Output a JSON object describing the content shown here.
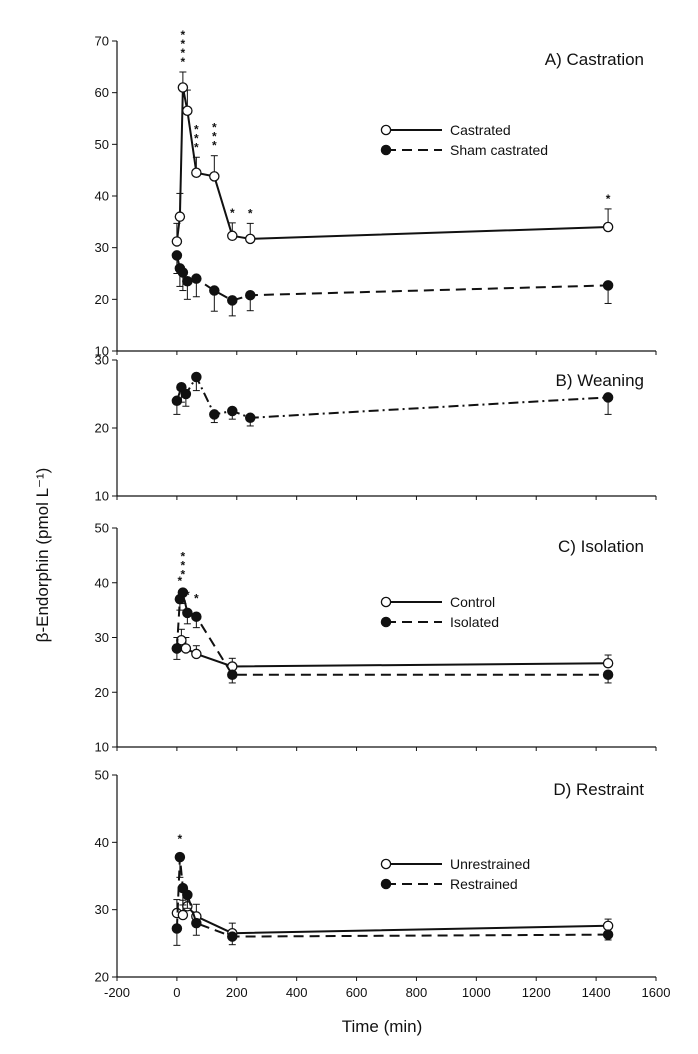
{
  "figure": {
    "ylabel": "β-Endorphin (pmol L⁻¹)",
    "xlabel": "Time (min)"
  },
  "chart_data": [
    {
      "type": "line",
      "title": "A) Castration",
      "xlim": [
        -200,
        1600
      ],
      "ylim": [
        10,
        70
      ],
      "yticks": [
        10,
        20,
        30,
        40,
        50,
        60,
        70
      ],
      "xticks": [],
      "legend": "right",
      "series": [
        {
          "name": "Castrated",
          "marker": "open",
          "dash": "solid",
          "x": [
            0,
            10,
            20,
            35,
            65,
            125,
            185,
            245,
            1440
          ],
          "y": [
            31.2,
            36,
            61,
            56.5,
            44.5,
            43.8,
            32.3,
            31.7,
            34
          ],
          "err": [
            3.5,
            4.5,
            3,
            4,
            3,
            4,
            2.5,
            3,
            3.5
          ],
          "stars": [
            0,
            0,
            4,
            0,
            3,
            3,
            1,
            1,
            1
          ]
        },
        {
          "name": "Sham castrated",
          "marker": "filled",
          "dash": "dashed",
          "x": [
            0,
            10,
            20,
            35,
            65,
            125,
            185,
            245,
            1440
          ],
          "y": [
            28.5,
            26,
            25.2,
            23.5,
            24,
            21.7,
            19.8,
            20.8,
            22.7
          ],
          "err": [
            3.5,
            3.5,
            3.5,
            3.5,
            3.5,
            4,
            3,
            3,
            3.5
          ],
          "stars": [
            0,
            0,
            0,
            0,
            0,
            0,
            0,
            0,
            0
          ]
        }
      ]
    },
    {
      "type": "line",
      "title": "B) Weaning",
      "xlim": [
        -200,
        1600
      ],
      "ylim": [
        10,
        30
      ],
      "yticks": [
        10,
        20,
        30
      ],
      "xticks": [],
      "legend": "none",
      "series": [
        {
          "name": "",
          "marker": "filled",
          "dash": "dashdot",
          "x": [
            0,
            15,
            30,
            65,
            125,
            185,
            245,
            1440
          ],
          "y": [
            24,
            26,
            25,
            27.5,
            22,
            22.5,
            21.5,
            24.5
          ],
          "err": [
            2,
            2.2,
            1.8,
            2,
            1.2,
            1.2,
            1.2,
            2.5
          ],
          "stars": [
            0,
            0,
            0,
            0,
            0,
            0,
            0,
            0
          ]
        }
      ]
    },
    {
      "type": "line",
      "title": "C) Isolation",
      "xlim": [
        -200,
        1600
      ],
      "ylim": [
        10,
        50
      ],
      "yticks": [
        10,
        20,
        30,
        40,
        50
      ],
      "xticks": [],
      "legend": "right",
      "series": [
        {
          "name": "Control",
          "marker": "open",
          "dash": "solid",
          "x": [
            0,
            15,
            30,
            65,
            185,
            1440
          ],
          "y": [
            28,
            29.5,
            28,
            27,
            24.7,
            25.3
          ],
          "err": [
            2,
            2,
            2,
            1.5,
            1.5,
            1.5
          ],
          "stars": [
            0,
            0,
            0,
            0,
            0,
            0
          ]
        },
        {
          "name": "Isolated",
          "marker": "filled",
          "dash": "dashed",
          "x": [
            0,
            10,
            20,
            35,
            65,
            185,
            1440
          ],
          "y": [
            28,
            37,
            38.2,
            34.5,
            33.8,
            23.2,
            23.2
          ],
          "err": [
            2,
            2,
            2,
            2,
            2,
            1.5,
            1.5
          ],
          "stars": [
            0,
            1,
            3,
            1,
            1,
            0,
            0
          ]
        }
      ]
    },
    {
      "type": "line",
      "title": "D) Restraint",
      "xlim": [
        -200,
        1600
      ],
      "ylim": [
        20,
        50
      ],
      "yticks": [
        20,
        30,
        40,
        50
      ],
      "xticks": [
        -200,
        0,
        200,
        400,
        600,
        800,
        1000,
        1200,
        1400,
        1600
      ],
      "legend": "right",
      "series": [
        {
          "name": "Unrestrained",
          "marker": "open",
          "dash": "solid",
          "x": [
            0,
            20,
            35,
            65,
            185,
            1440
          ],
          "y": [
            29.5,
            29.2,
            30.5,
            29,
            26.5,
            27.6
          ],
          "err": [
            2,
            2.2,
            2,
            1.8,
            1.5,
            1
          ],
          "stars": [
            0,
            0,
            0,
            0,
            0,
            0
          ]
        },
        {
          "name": "Restrained",
          "marker": "filled",
          "dash": "dashed",
          "x": [
            0,
            10,
            20,
            35,
            65,
            185,
            1440
          ],
          "y": [
            27.2,
            37.8,
            33.2,
            32.2,
            28,
            26,
            26.3
          ],
          "err": [
            2.5,
            3,
            2.5,
            2,
            1.8,
            1.2,
            0.8
          ],
          "stars": [
            0,
            1,
            0,
            0,
            0,
            0,
            0
          ]
        }
      ]
    }
  ]
}
